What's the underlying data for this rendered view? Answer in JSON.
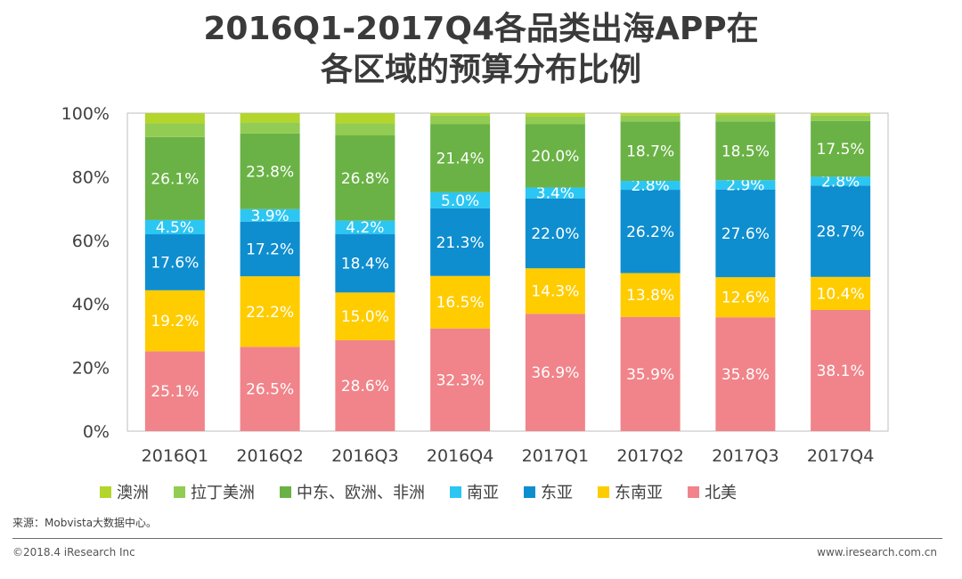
{
  "header": {
    "title_line1": "2016Q1-2017Q4各品类出海APP在",
    "title_line2": "各区域的预算分布比例"
  },
  "chart_data": {
    "type": "bar",
    "stacked": true,
    "percent": true,
    "categories": [
      "2016Q1",
      "2016Q2",
      "2016Q3",
      "2016Q4",
      "2017Q1",
      "2017Q2",
      "2017Q3",
      "2017Q4"
    ],
    "ylim": [
      0,
      100
    ],
    "yticks": [
      "0%",
      "20%",
      "40%",
      "60%",
      "80%",
      "100%"
    ],
    "series": [
      {
        "name": "北美",
        "color": "#F0848A",
        "values": [
          25.1,
          26.5,
          28.6,
          32.3,
          36.9,
          35.9,
          35.8,
          38.1
        ],
        "labels": [
          "25.1%",
          "26.5%",
          "28.6%",
          "32.3%",
          "36.9%",
          "35.9%",
          "35.8%",
          "38.1%"
        ]
      },
      {
        "name": "东南亚",
        "color": "#FFCC00",
        "values": [
          19.2,
          22.2,
          15.0,
          16.5,
          14.3,
          13.8,
          12.6,
          10.4
        ],
        "labels": [
          "19.2%",
          "22.2%",
          "15.0%",
          "16.5%",
          "14.3%",
          "13.8%",
          "12.6%",
          "10.4%"
        ]
      },
      {
        "name": "东亚",
        "color": "#0E8ECF",
        "values": [
          17.6,
          17.2,
          18.4,
          21.3,
          22.0,
          26.2,
          27.6,
          28.7
        ],
        "labels": [
          "17.6%",
          "17.2%",
          "18.4%",
          "21.3%",
          "22.0%",
          "26.2%",
          "27.6%",
          "28.7%"
        ]
      },
      {
        "name": "南亚",
        "color": "#2CC6F3",
        "values": [
          4.5,
          3.9,
          4.2,
          5.0,
          3.4,
          2.8,
          2.9,
          2.8
        ],
        "labels": [
          "4.5%",
          "3.9%",
          "4.2%",
          "5.0%",
          "3.4%",
          "2.8%",
          "2.9%",
          "2.8%"
        ]
      },
      {
        "name": "中东、欧洲、非洲",
        "color": "#6AB245",
        "values": [
          26.1,
          23.8,
          26.8,
          21.4,
          20.0,
          18.7,
          18.5,
          17.5
        ],
        "labels": [
          "26.1%",
          "23.8%",
          "26.8%",
          "21.4%",
          "20.0%",
          "18.7%",
          "18.5%",
          "17.5%"
        ]
      },
      {
        "name": "拉丁美洲",
        "color": "#92CC52",
        "values": [
          4.3,
          3.5,
          3.8,
          2.7,
          2.4,
          1.8,
          1.9,
          1.7
        ],
        "labels": [
          "",
          "",
          "",
          "",
          "",
          "",
          "",
          ""
        ]
      },
      {
        "name": "澳洲",
        "color": "#B3D52C",
        "values": [
          3.2,
          2.9,
          3.2,
          0.8,
          1.0,
          0.8,
          0.7,
          0.8
        ],
        "labels": [
          "",
          "",
          "",
          "",
          "",
          "",
          "",
          ""
        ]
      }
    ],
    "legend_order": [
      "澳洲",
      "拉丁美洲",
      "中东、欧洲、非洲",
      "南亚",
      "东亚",
      "东南亚",
      "北美"
    ],
    "legend_position": "bottom"
  },
  "footer": {
    "source": "来源：Mobvista大数据中心。",
    "copyright": "©2018.4 iResearch Inc",
    "website": "www.iresearch.com.cn"
  }
}
